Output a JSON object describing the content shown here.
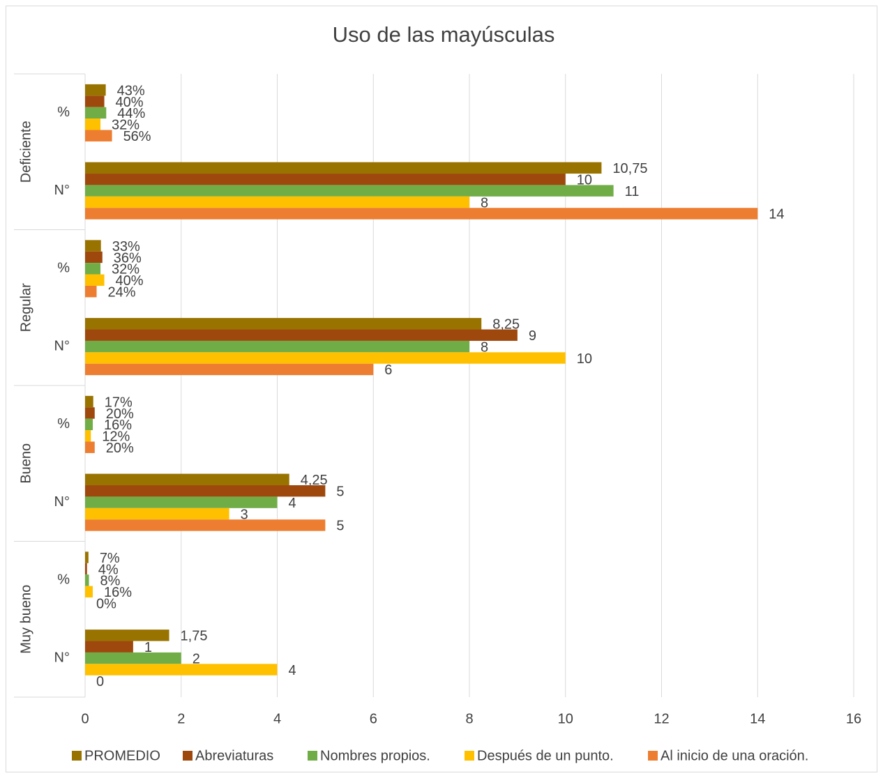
{
  "chart_data": {
    "type": "bar",
    "orientation": "horizontal",
    "title": "Uso de las mayúsculas",
    "category_groups": [
      "Deficiente",
      "Regular",
      "Bueno",
      "Muy bueno"
    ],
    "categories": [
      "%",
      "N°",
      "%",
      "N°",
      "%",
      "N°",
      "%",
      "N°"
    ],
    "series": [
      {
        "name": "PROMEDIO",
        "color": "#997300",
        "values": [
          0.43,
          10.75,
          0.33,
          8.25,
          0.17,
          4.25,
          0.07,
          1.75
        ],
        "value_labels": [
          "43%",
          "10,75",
          "33%",
          "8,25",
          "17%",
          "4,25",
          "7%",
          "1,75"
        ]
      },
      {
        "name": "Abreviaturas",
        "color": "#9e480e",
        "values": [
          0.4,
          10,
          0.36,
          9,
          0.2,
          5,
          0.04,
          1
        ],
        "value_labels": [
          "40%",
          "10",
          "36%",
          "9",
          "20%",
          "5",
          "4%",
          "1"
        ]
      },
      {
        "name": "Nombres propios.",
        "color": "#70ad47",
        "values": [
          0.44,
          11,
          0.32,
          8,
          0.16,
          4,
          0.08,
          2
        ],
        "value_labels": [
          "44%",
          "11",
          "32%",
          "8",
          "16%",
          "4",
          "8%",
          "2"
        ]
      },
      {
        "name": "Después de un punto.",
        "color": "#ffc000",
        "values": [
          0.32,
          8,
          0.4,
          10,
          0.12,
          3,
          0.16,
          4
        ],
        "value_labels": [
          "32%",
          "8",
          "40%",
          "10",
          "12%",
          "3",
          "16%",
          "4"
        ]
      },
      {
        "name": "Al inicio de una oración.",
        "color": "#ed7d31",
        "values": [
          0.56,
          14,
          0.24,
          6,
          0.2,
          5,
          0,
          0
        ],
        "value_labels": [
          "56%",
          "14",
          "24%",
          "6",
          "20%",
          "5",
          "0%",
          "0"
        ]
      }
    ],
    "xlim": [
      0,
      16
    ],
    "xticks": [
      0,
      2,
      4,
      6,
      8,
      10,
      12,
      14,
      16
    ],
    "grid": true,
    "legend": "bottom"
  }
}
